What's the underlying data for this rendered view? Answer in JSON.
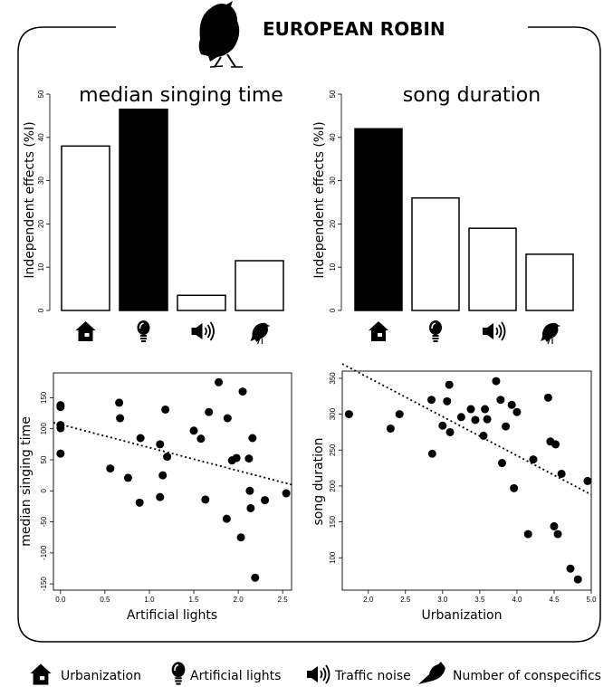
{
  "header": {
    "title": "EUROPEAN ROBIN"
  },
  "legend": [
    {
      "icon": "house-icon",
      "label": "Urbanization"
    },
    {
      "icon": "lightbulb-icon",
      "label": "Artificial lights"
    },
    {
      "icon": "speaker-icon",
      "label": "Traffic noise"
    },
    {
      "icon": "bird-icon",
      "label": "Number of conspecifics"
    }
  ],
  "chart_data": [
    {
      "type": "bar",
      "title": "median singing time",
      "ylabel": "Independent effects (%I)",
      "ylim": [
        0,
        50
      ],
      "yticks": [
        "0",
        "10",
        "20",
        "30",
        "40",
        "50"
      ],
      "categories": [
        "house-icon",
        "lightbulb-icon",
        "speaker-icon",
        "bird-icon"
      ],
      "values": [
        38,
        46.5,
        3.5,
        11.5
      ],
      "colors": [
        "#ffffff",
        "#000000",
        "#ffffff",
        "#ffffff"
      ]
    },
    {
      "type": "bar",
      "title": "song duration",
      "ylabel": "Independent effects (%I)",
      "ylim": [
        0,
        50
      ],
      "yticks": [
        "0",
        "10",
        "20",
        "30",
        "40",
        "50"
      ],
      "categories": [
        "house-icon",
        "lightbulb-icon",
        "speaker-icon",
        "bird-icon"
      ],
      "values": [
        42,
        26,
        19,
        13
      ],
      "colors": [
        "#000000",
        "#ffffff",
        "#ffffff",
        "#ffffff"
      ]
    },
    {
      "type": "scatter",
      "xlabel": "Artificial lights",
      "ylabel": "median singing time",
      "xlim": [
        -0.08,
        2.6
      ],
      "ylim": [
        -160,
        190
      ],
      "xticks": [
        "0.0",
        "0.5",
        "1.0",
        "1.5",
        "2.0",
        "2.5"
      ],
      "yticks": [
        "-150",
        "-100",
        "-50",
        "0",
        "50",
        "100",
        "150"
      ],
      "trend": {
        "x": [
          -0.08,
          2.6
        ],
        "y": [
          110,
          10
        ],
        "style": "dotted"
      },
      "x": [
        0.0,
        0.0,
        0.0,
        0.0,
        0.0,
        0.56,
        0.66,
        0.67,
        0.76,
        0.89,
        0.9,
        1.12,
        1.12,
        1.15,
        1.18,
        1.2,
        1.5,
        1.58,
        1.63,
        1.67,
        1.78,
        1.87,
        1.88,
        1.93,
        1.98,
        2.03,
        2.05,
        2.12,
        2.13,
        2.14,
        2.16,
        2.19,
        2.3,
        2.54
      ],
      "y": [
        138,
        135,
        106,
        101,
        60,
        36,
        142,
        117,
        21,
        -19,
        85,
        75,
        -10,
        25,
        131,
        55,
        97,
        84,
        -14,
        127,
        175,
        -45,
        117,
        49,
        53,
        -75,
        160,
        52,
        0,
        -28,
        85,
        -140,
        -15,
        -4
      ]
    },
    {
      "type": "scatter",
      "xlabel": "Urbanization",
      "ylabel": "song duration",
      "xlim": [
        1.65,
        5.0
      ],
      "ylim": [
        55,
        360
      ],
      "xticks": [
        "2.0",
        "2.5",
        "3.0",
        "3.5",
        "4.0",
        "4.5",
        "5.0"
      ],
      "yticks": [
        "100",
        "150",
        "200",
        "250",
        "300",
        "350"
      ],
      "trend": {
        "x": [
          1.65,
          5.0
        ],
        "y": [
          370,
          188
        ],
        "style": "dotted"
      },
      "x": [
        1.74,
        2.3,
        2.42,
        2.85,
        2.86,
        3.0,
        3.06,
        3.09,
        3.1,
        3.25,
        3.38,
        3.44,
        3.55,
        3.57,
        3.6,
        3.72,
        3.78,
        3.8,
        3.85,
        3.93,
        3.96,
        4.0,
        4.15,
        4.22,
        4.42,
        4.45,
        4.5,
        4.52,
        4.55,
        4.6,
        4.72,
        4.82,
        4.95
      ],
      "y": [
        300,
        280,
        300,
        320,
        245,
        284,
        318,
        341,
        275,
        296,
        307,
        292,
        270,
        307,
        293,
        346,
        320,
        232,
        283,
        313,
        197,
        303,
        133,
        237,
        323,
        262,
        144,
        258,
        133,
        217,
        85,
        70,
        207
      ]
    }
  ]
}
